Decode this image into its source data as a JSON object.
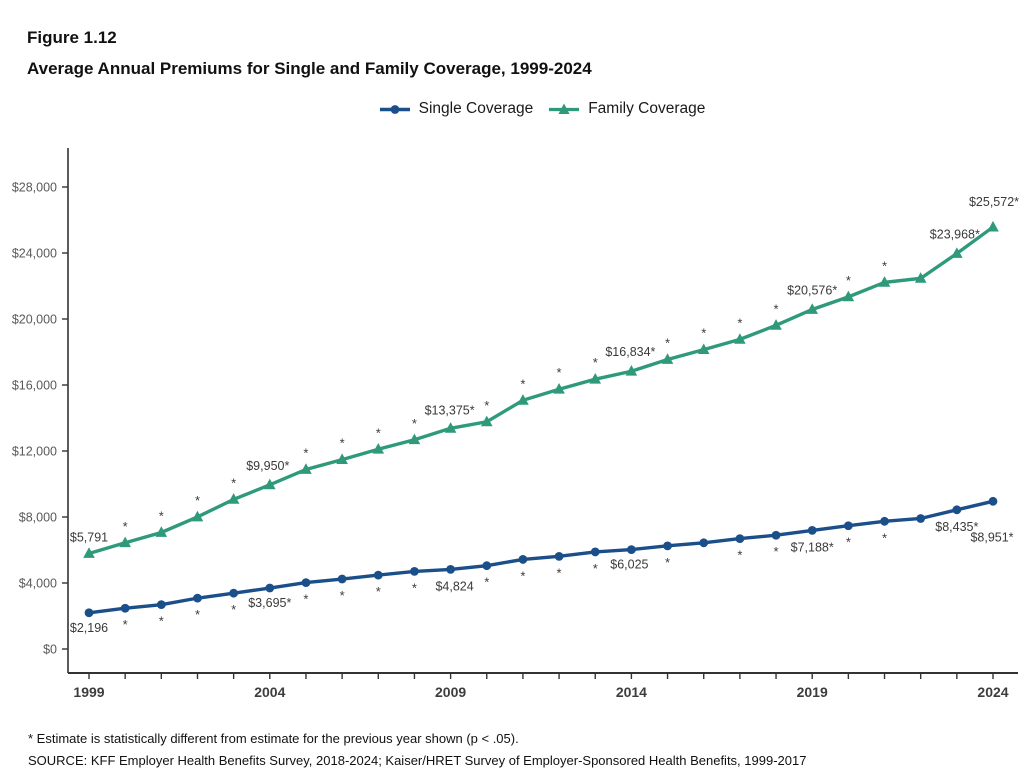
{
  "header": {
    "figure_label": "Figure 1.12",
    "title": "Average Annual Premiums for Single and Family Coverage, 1999-2024"
  },
  "footnotes": {
    "significance": "* Estimate is statistically different from estimate for the previous year shown (p < .05).",
    "source": "SOURCE: KFF Employer Health Benefits Survey, 2018-2024; Kaiser/HRET Survey of Employer-Sponsored Health Benefits, 1999-2017"
  },
  "colors": {
    "single": "#1B4F8A",
    "family": "#2F9A7B",
    "axis": "#333333",
    "y_tick_label": "#595959",
    "x_tick_label": "#3d3d3d",
    "point_label": "#3a3a3a",
    "asterisk": "#3a3a3a"
  },
  "chart_data": {
    "type": "line",
    "title": "Average Annual Premiums for Single and Family Coverage, 1999-2024",
    "x": [
      1999,
      2000,
      2001,
      2002,
      2003,
      2004,
      2005,
      2006,
      2007,
      2008,
      2009,
      2010,
      2011,
      2012,
      2013,
      2014,
      2015,
      2016,
      2017,
      2018,
      2019,
      2020,
      2021,
      2022,
      2023,
      2024
    ],
    "x_labeled_ticks": [
      1999,
      2004,
      2009,
      2014,
      2019,
      2024
    ],
    "ylim": [
      0,
      28000
    ],
    "y_tick_step": 4000,
    "y_tick_labels": [
      "$0",
      "$4,000",
      "$8,000",
      "$12,000",
      "$16,000",
      "$20,000",
      "$24,000",
      "$28,000"
    ],
    "grid": false,
    "legend_position": "top-center",
    "series": [
      {
        "name": "Single Coverage",
        "slug": "single-coverage",
        "color": "#1B4F8A",
        "marker": "circle",
        "values": [
          2196,
          2471,
          2689,
          3083,
          3383,
          3695,
          4024,
          4242,
          4479,
          4704,
          4824,
          5049,
          5429,
          5615,
          5884,
          6025,
          6251,
          6435,
          6690,
          6896,
          7188,
          7470,
          7739,
          7911,
          8435,
          8951
        ],
        "asterisk_years": [
          2000,
          2001,
          2002,
          2003,
          2005,
          2006,
          2007,
          2008,
          2010,
          2011,
          2012,
          2013,
          2015,
          2017,
          2018,
          2020,
          2021
        ],
        "asterisk_side": "below",
        "point_labels": [
          {
            "year": 1999,
            "text": "$2,196",
            "dx": 0,
            "dy": 19
          },
          {
            "year": 2004,
            "text": "$3,695*",
            "dx": 0,
            "dy": 19
          },
          {
            "year": 2009,
            "text": "$4,824",
            "dx": 4,
            "dy": 21
          },
          {
            "year": 2014,
            "text": "$6,025",
            "dx": -2,
            "dy": 19
          },
          {
            "year": 2019,
            "text": "$7,188*",
            "dx": 0,
            "dy": 21
          },
          {
            "year": 2023,
            "text": "$8,435*",
            "dx": 0,
            "dy": 21
          },
          {
            "year": 2024,
            "text": "$8,951*",
            "dx": -1,
            "dy": 40
          }
        ]
      },
      {
        "name": "Family Coverage",
        "slug": "family-coverage",
        "color": "#2F9A7B",
        "marker": "triangle",
        "values": [
          5791,
          6438,
          7061,
          8003,
          9068,
          9950,
          10880,
          11480,
          12106,
          12680,
          13375,
          13770,
          15073,
          15745,
          16351,
          16834,
          17545,
          18142,
          18764,
          19616,
          20576,
          21342,
          22221,
          22463,
          23968,
          25572
        ],
        "asterisk_years": [
          2000,
          2001,
          2002,
          2003,
          2005,
          2006,
          2007,
          2008,
          2010,
          2011,
          2012,
          2013,
          2015,
          2016,
          2017,
          2018,
          2020,
          2021
        ],
        "asterisk_side": "above",
        "point_labels": [
          {
            "year": 1999,
            "text": "$5,791",
            "dx": 0,
            "dy": -12
          },
          {
            "year": 2004,
            "text": "$9,950*",
            "dx": -2,
            "dy": -15
          },
          {
            "year": 2009,
            "text": "$13,375*",
            "dx": -1,
            "dy": -14
          },
          {
            "year": 2014,
            "text": "$16,834*",
            "dx": -1,
            "dy": -15
          },
          {
            "year": 2019,
            "text": "$20,576*",
            "dx": 0,
            "dy": -15
          },
          {
            "year": 2023,
            "text": "$23,968*",
            "dx": -2,
            "dy": -15
          },
          {
            "year": 2024,
            "text": "$25,572*",
            "dx": 1,
            "dy": -21
          }
        ]
      }
    ]
  }
}
